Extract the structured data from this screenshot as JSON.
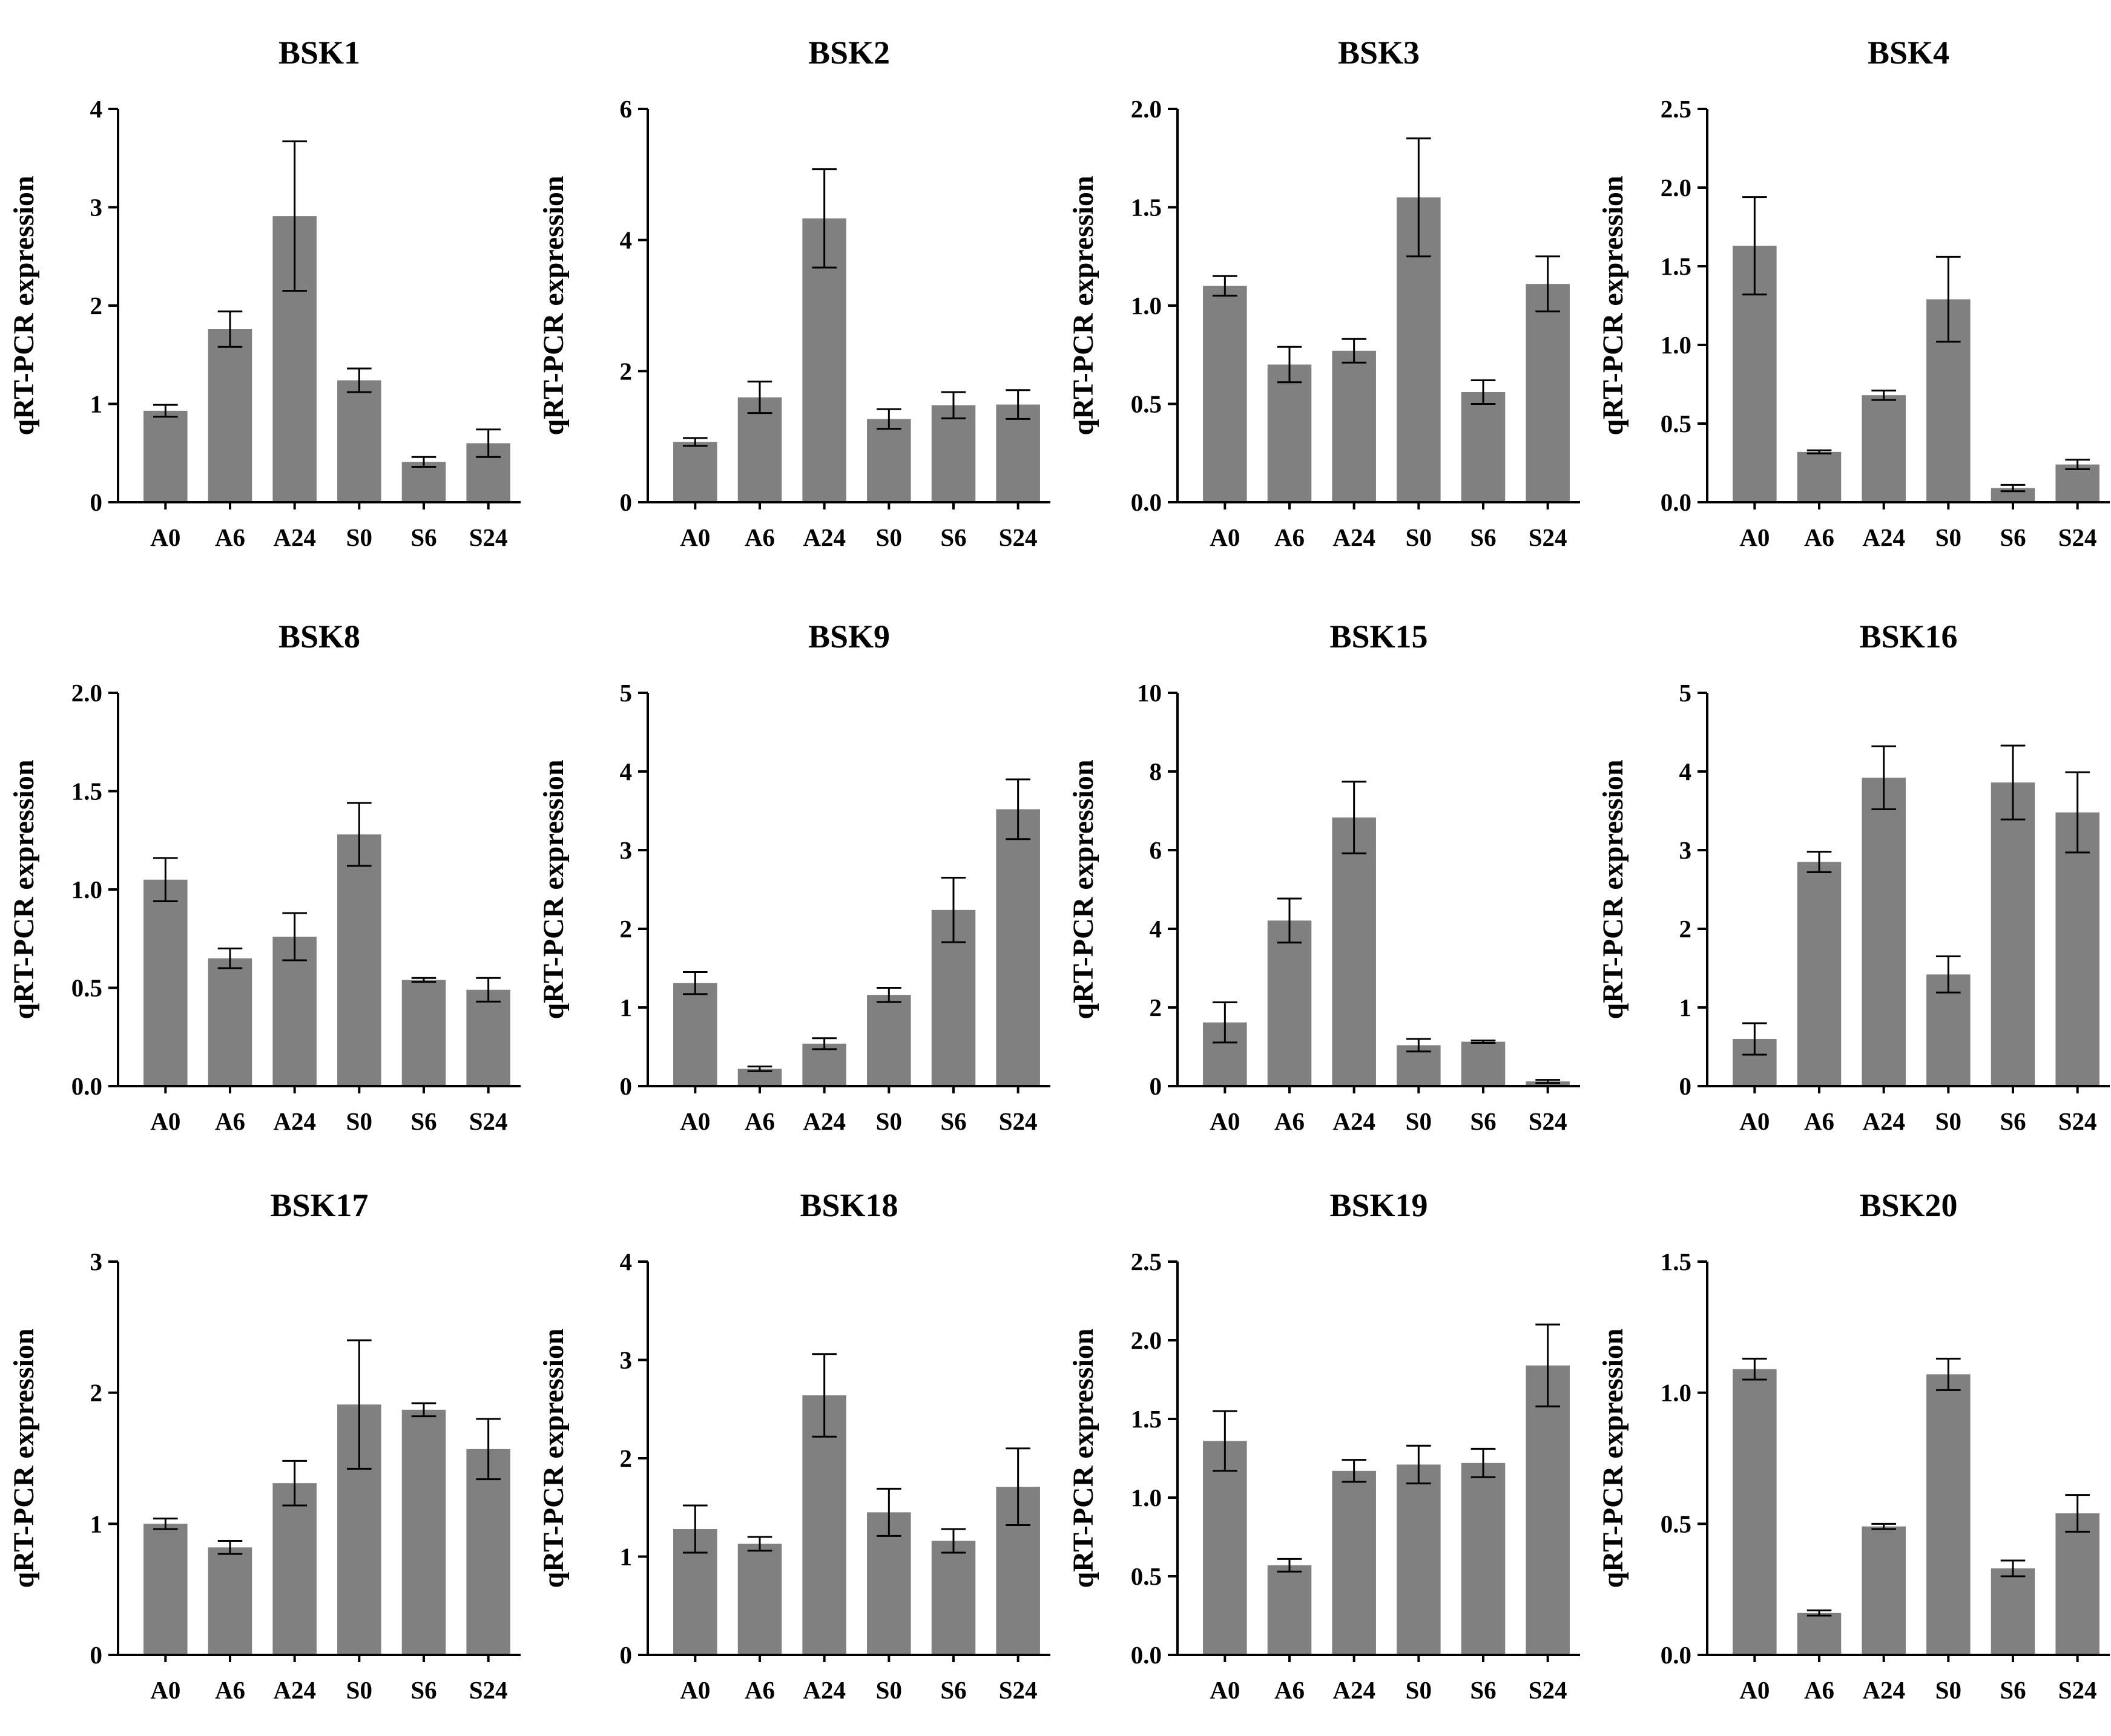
{
  "chart_data": [
    {
      "type": "bar",
      "title": "BSK1",
      "xlabel": "",
      "ylabel": "qRT-PCR expression",
      "categories": [
        "A0",
        "A6",
        "A24",
        "S0",
        "S6",
        "S24"
      ],
      "values": [
        0.93,
        1.76,
        2.91,
        1.24,
        0.41,
        0.6
      ],
      "errors": [
        0.06,
        0.18,
        0.76,
        0.12,
        0.05,
        0.14
      ],
      "ylim": [
        0,
        4
      ],
      "yticks": [
        "0",
        "1",
        "2",
        "3",
        "4"
      ]
    },
    {
      "type": "bar",
      "title": "BSK2",
      "xlabel": "",
      "ylabel": "qRT-PCR expression",
      "categories": [
        "A0",
        "A6",
        "A24",
        "S0",
        "S6",
        "S24"
      ],
      "values": [
        0.92,
        1.6,
        4.33,
        1.27,
        1.48,
        1.49
      ],
      "errors": [
        0.06,
        0.24,
        0.75,
        0.15,
        0.2,
        0.22
      ],
      "ylim": [
        0,
        6
      ],
      "yticks": [
        "0",
        "2",
        "4",
        "6"
      ]
    },
    {
      "type": "bar",
      "title": "BSK3",
      "xlabel": "",
      "ylabel": "qRT-PCR expression",
      "categories": [
        "A0",
        "A6",
        "A24",
        "S0",
        "S6",
        "S24"
      ],
      "values": [
        1.1,
        0.7,
        0.77,
        1.55,
        0.56,
        1.11
      ],
      "errors": [
        0.05,
        0.09,
        0.06,
        0.3,
        0.06,
        0.14
      ],
      "ylim": [
        0,
        2
      ],
      "yticks": [
        "0.0",
        "0.5",
        "1.0",
        "1.5",
        "2.0"
      ]
    },
    {
      "type": "bar",
      "title": "BSK4",
      "xlabel": "",
      "ylabel": "qRT-PCR expression",
      "categories": [
        "A0",
        "A6",
        "A24",
        "S0",
        "S6",
        "S24"
      ],
      "values": [
        1.63,
        0.32,
        0.68,
        1.29,
        0.09,
        0.24
      ],
      "errors": [
        0.31,
        0.01,
        0.03,
        0.27,
        0.02,
        0.03
      ],
      "ylim": [
        0,
        2.5
      ],
      "yticks": [
        "0.0",
        "0.5",
        "1.0",
        "1.5",
        "2.0",
        "2.5"
      ]
    },
    {
      "type": "bar",
      "title": "BSK8",
      "xlabel": "",
      "ylabel": "qRT-PCR expression",
      "categories": [
        "A0",
        "A6",
        "A24",
        "S0",
        "S6",
        "S24"
      ],
      "values": [
        1.05,
        0.65,
        0.76,
        1.28,
        0.54,
        0.49
      ],
      "errors": [
        0.11,
        0.05,
        0.12,
        0.16,
        0.01,
        0.06
      ],
      "ylim": [
        0,
        2
      ],
      "yticks": [
        "0.0",
        "0.5",
        "1.0",
        "1.5",
        "2.0"
      ]
    },
    {
      "type": "bar",
      "title": "BSK9",
      "xlabel": "",
      "ylabel": "qRT-PCR expression",
      "categories": [
        "A0",
        "A6",
        "A24",
        "S0",
        "S6",
        "S24"
      ],
      "values": [
        1.31,
        0.22,
        0.54,
        1.16,
        2.24,
        3.52
      ],
      "errors": [
        0.14,
        0.03,
        0.07,
        0.09,
        0.41,
        0.38
      ],
      "ylim": [
        0,
        5
      ],
      "yticks": [
        "0",
        "1",
        "2",
        "3",
        "4",
        "5"
      ]
    },
    {
      "type": "bar",
      "title": "BSK15",
      "xlabel": "",
      "ylabel": "qRT-PCR expression",
      "categories": [
        "A0",
        "A6",
        "A24",
        "S0",
        "S6",
        "S24"
      ],
      "values": [
        1.62,
        4.21,
        6.83,
        1.04,
        1.13,
        0.12
      ],
      "errors": [
        0.51,
        0.56,
        0.91,
        0.16,
        0.03,
        0.04
      ],
      "ylim": [
        0,
        10
      ],
      "yticks": [
        "0",
        "2",
        "4",
        "6",
        "8",
        "10"
      ]
    },
    {
      "type": "bar",
      "title": "BSK16",
      "xlabel": "",
      "ylabel": "qRT-PCR expression",
      "categories": [
        "A0",
        "A6",
        "A24",
        "S0",
        "S6",
        "S24"
      ],
      "values": [
        0.6,
        2.85,
        3.92,
        1.42,
        3.86,
        3.48
      ],
      "errors": [
        0.2,
        0.13,
        0.4,
        0.23,
        0.47,
        0.51
      ],
      "ylim": [
        0,
        5
      ],
      "yticks": [
        "0",
        "1",
        "2",
        "3",
        "4",
        "5"
      ]
    },
    {
      "type": "bar",
      "title": "BSK17",
      "xlabel": "",
      "ylabel": "qRT-PCR expression",
      "categories": [
        "A0",
        "A6",
        "A24",
        "S0",
        "S6",
        "S24"
      ],
      "values": [
        1.0,
        0.82,
        1.31,
        1.91,
        1.87,
        1.57
      ],
      "errors": [
        0.04,
        0.05,
        0.17,
        0.49,
        0.05,
        0.23
      ],
      "ylim": [
        0,
        3
      ],
      "yticks": [
        "0",
        "1",
        "2",
        "3"
      ]
    },
    {
      "type": "bar",
      "title": "BSK18",
      "xlabel": "",
      "ylabel": "qRT-PCR expression",
      "categories": [
        "A0",
        "A6",
        "A24",
        "S0",
        "S6",
        "S24"
      ],
      "values": [
        1.28,
        1.13,
        2.64,
        1.45,
        1.16,
        1.71
      ],
      "errors": [
        0.24,
        0.07,
        0.42,
        0.24,
        0.12,
        0.39
      ],
      "ylim": [
        0,
        4
      ],
      "yticks": [
        "0",
        "1",
        "2",
        "3",
        "4"
      ]
    },
    {
      "type": "bar",
      "title": "BSK19",
      "xlabel": "",
      "ylabel": "qRT-PCR expression",
      "categories": [
        "A0",
        "A6",
        "A24",
        "S0",
        "S6",
        "S24"
      ],
      "values": [
        1.36,
        0.57,
        1.17,
        1.21,
        1.22,
        1.84
      ],
      "errors": [
        0.19,
        0.04,
        0.07,
        0.12,
        0.09,
        0.26
      ],
      "ylim": [
        0,
        2.5
      ],
      "yticks": [
        "0.0",
        "0.5",
        "1.0",
        "1.5",
        "2.0",
        "2.5"
      ]
    },
    {
      "type": "bar",
      "title": "BSK20",
      "xlabel": "",
      "ylabel": "qRT-PCR expression",
      "categories": [
        "A0",
        "A6",
        "A24",
        "S0",
        "S6",
        "S24"
      ],
      "values": [
        1.09,
        0.16,
        0.49,
        1.07,
        0.33,
        0.54
      ],
      "errors": [
        0.04,
        0.01,
        0.01,
        0.06,
        0.03,
        0.07
      ],
      "ylim": [
        0,
        1.5
      ],
      "yticks": [
        "0.0",
        "0.5",
        "1.0",
        "1.5"
      ]
    }
  ],
  "colors": {
    "bar": "#808080",
    "axis": "#000000"
  }
}
